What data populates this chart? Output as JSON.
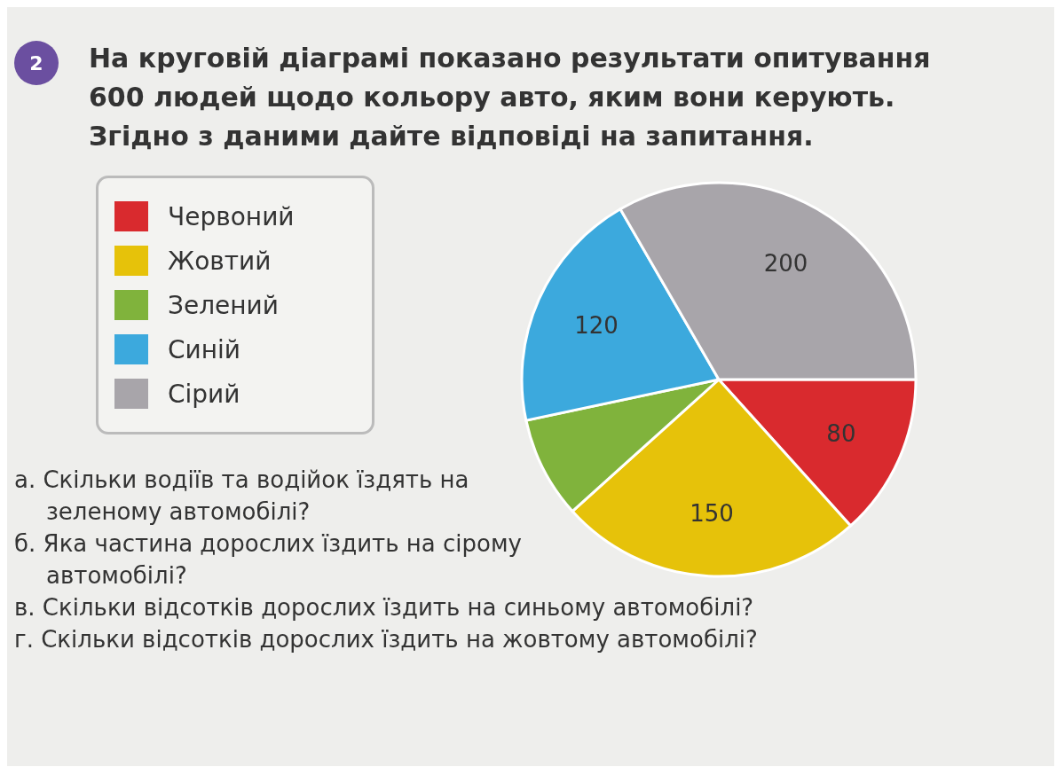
{
  "chart_data": {
    "type": "pie",
    "title": "На круговій діаграмі показано результати опитування 600 людей щодо кольору авто, яким вони керують. Згідно з даними дайте відповіді на запитання.",
    "categories": [
      "Червоний",
      "Жовтий",
      "Зелений",
      "Синій",
      "Сірий"
    ],
    "values": [
      80,
      150,
      50,
      120,
      200
    ],
    "colors": [
      "#d92a2e",
      "#e6c20a",
      "#80b33c",
      "#3ca9dd",
      "#a8a5aa"
    ],
    "value_labels": [
      "80",
      "150",
      null,
      "120",
      "200"
    ],
    "legend": "left",
    "annotations": [
      "2",
      "а. Скільки водіїв та водійок їздять на зеленому автомобілі?",
      "б. Яка частина дорослих їздить на сірому автомобілі?",
      "в. Скільки відсотків дорослих їздить на синьому автомобілі?",
      "г. Скільки відсотків дорослих їздить на жовтому автомобілі?"
    ]
  }
}
